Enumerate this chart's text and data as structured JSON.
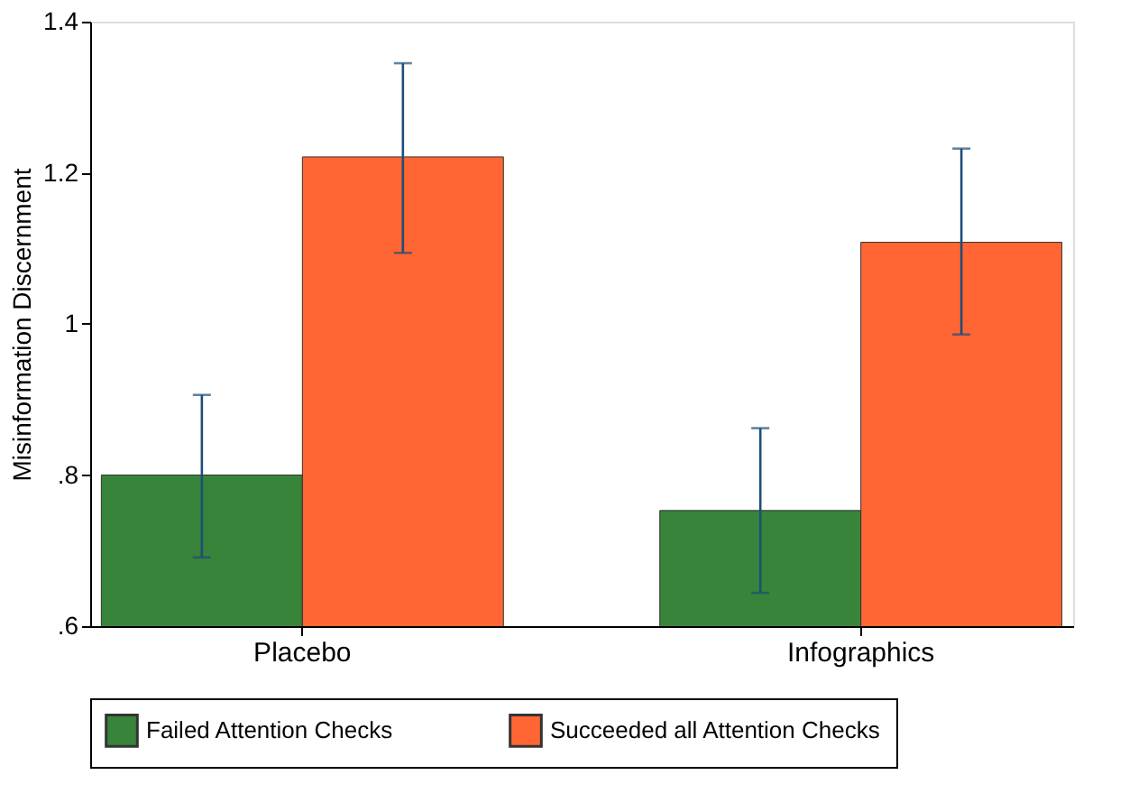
{
  "chart_data": {
    "type": "bar",
    "ylabel": "Misinformation Discernment",
    "categories": [
      "Placebo",
      "Infographics"
    ],
    "series": [
      {
        "name": "Failed Attention Checks",
        "color": "#38843a",
        "values": [
          0.8,
          0.753
        ],
        "errors": [
          [
            0.691,
            0.906
          ],
          [
            0.644,
            0.862
          ]
        ]
      },
      {
        "name": "Succeeded all Attention Checks",
        "color": "#ff6633",
        "values": [
          1.221,
          1.108
        ],
        "errors": [
          [
            1.094,
            1.345
          ],
          [
            0.986,
            1.232
          ]
        ]
      }
    ],
    "ylim": [
      0.6,
      1.4
    ],
    "yticks": [
      {
        "value": 0.6,
        "label": ".6"
      },
      {
        "value": 0.8,
        "label": ".8"
      },
      1,
      {
        "value": 1.2,
        "label": "1.2"
      },
      {
        "value": 1.4,
        "label": "1.4"
      }
    ],
    "grid": false,
    "legend": "bottom"
  }
}
